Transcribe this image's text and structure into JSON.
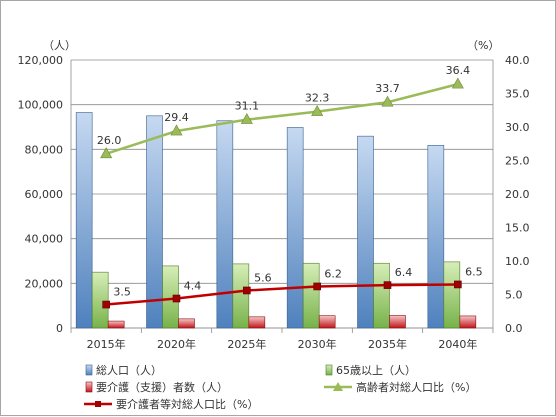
{
  "chart_data": {
    "type": "bar+line",
    "categories": [
      "2015年",
      "2020年",
      "2025年",
      "2030年",
      "2035年",
      "2040年"
    ],
    "left_axis": {
      "unit_label": "（人）",
      "ylim": [
        0,
        120000
      ],
      "ticks": [
        "0",
        "20,000",
        "40,000",
        "60,000",
        "80,000",
        "100,000",
        "120,000"
      ],
      "tick_values": [
        0,
        20000,
        40000,
        60000,
        80000,
        100000,
        120000
      ]
    },
    "right_axis": {
      "unit_label": "（%）",
      "ylim": [
        0,
        40
      ],
      "ticks": [
        "0.0",
        "5.0",
        "10.0",
        "15.0",
        "20.0",
        "25.0",
        "30.0",
        "35.0",
        "40.0"
      ],
      "tick_values": [
        0,
        5,
        10,
        15,
        20,
        25,
        30,
        35,
        40
      ]
    },
    "bar_series": [
      {
        "name": "総人口（人）",
        "values": [
          96500,
          95000,
          92800,
          89800,
          85900,
          81800
        ],
        "color_top": "#c6d9f1",
        "color_bottom": "#4f81bd",
        "stroke": "#3a5f8f"
      },
      {
        "name": "65歳以上（人）",
        "values": [
          25000,
          27800,
          28700,
          29000,
          29000,
          29600
        ],
        "color_top": "#d7eeb8",
        "color_bottom": "#77b24a",
        "stroke": "#4e7a2a"
      },
      {
        "name": "要介護（支援）者数（人）",
        "values": [
          3100,
          4100,
          5000,
          5500,
          5600,
          5400
        ],
        "color_top": "#f6c6c6",
        "color_bottom": "#c0161c",
        "stroke": "#8b0e12"
      }
    ],
    "line_series": [
      {
        "name": "高齢者対総人口比（%）",
        "values": [
          26.0,
          29.4,
          31.1,
          32.3,
          33.7,
          36.4
        ],
        "labels": [
          "26.0",
          "29.4",
          "31.1",
          "32.3",
          "33.7",
          "36.4"
        ],
        "color": "#9bbb59",
        "marker": "triangle"
      },
      {
        "name": "要介護者等対総人口比（%）",
        "values": [
          3.5,
          4.4,
          5.6,
          6.2,
          6.4,
          6.5
        ],
        "labels": [
          "3.5",
          "4.4",
          "5.6",
          "6.2",
          "6.4",
          "6.5"
        ],
        "color": "#c00000",
        "marker": "square"
      }
    ],
    "grid": true,
    "legend_position": "bottom"
  }
}
